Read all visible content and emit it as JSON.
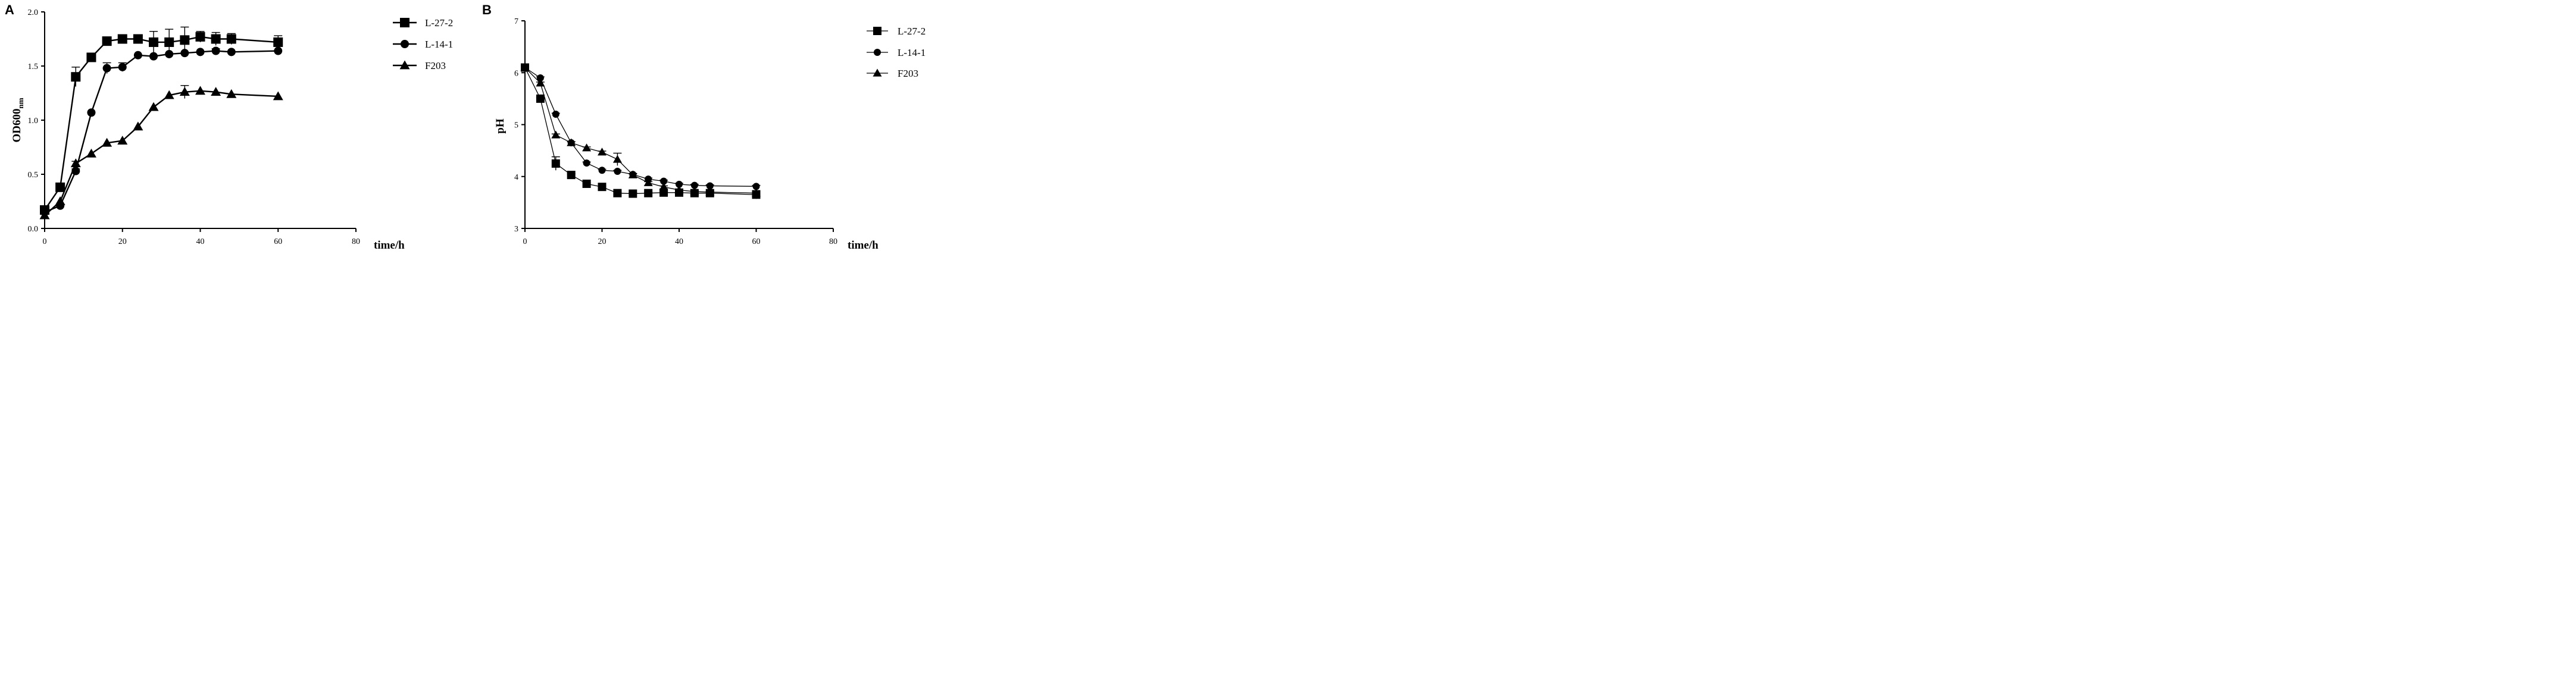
{
  "chart_data": [
    {
      "type": "line",
      "panel_label": "A",
      "xlabel": "time/h",
      "ylabel": {
        "main": "OD600",
        "sub": "nm"
      },
      "xlim": [
        0,
        80
      ],
      "ylim": [
        0.0,
        2.0
      ],
      "x_ticks": [
        "0",
        "20",
        "40",
        "60",
        "80"
      ],
      "y_ticks": [
        "0.0",
        "0.5",
        "1.0",
        "1.5",
        "2.0"
      ],
      "legend_position": "top-right",
      "grid": false,
      "series": [
        {
          "name": "L-27-2",
          "marker": "square",
          "x": [
            0,
            4,
            8,
            12,
            16,
            20,
            24,
            28,
            32,
            36,
            40,
            44,
            48,
            60
          ],
          "y": [
            0.17,
            0.38,
            1.4,
            1.58,
            1.73,
            1.75,
            1.75,
            1.72,
            1.72,
            1.74,
            1.77,
            1.75,
            1.75,
            1.72
          ],
          "err": [
            0.02,
            0.02,
            0.09,
            0.01,
            0.03,
            0.03,
            0.03,
            0.1,
            0.12,
            0.12,
            0.05,
            0.06,
            0.05,
            0.06
          ]
        },
        {
          "name": "L-14-1",
          "marker": "circle",
          "x": [
            0,
            4,
            8,
            12,
            16,
            20,
            24,
            28,
            32,
            36,
            40,
            44,
            48,
            60
          ],
          "y": [
            0.15,
            0.21,
            0.53,
            1.07,
            1.48,
            1.49,
            1.6,
            1.59,
            1.61,
            1.62,
            1.63,
            1.64,
            1.63,
            1.64
          ],
          "err": [
            0.01,
            0.01,
            0.02,
            0.01,
            0.05,
            0.04,
            0.01,
            0.01,
            0.01,
            0.01,
            0.01,
            0.02,
            0.01,
            0.01
          ]
        },
        {
          "name": "F203",
          "marker": "triangle",
          "x": [
            0,
            4,
            8,
            12,
            16,
            20,
            24,
            28,
            32,
            36,
            40,
            44,
            48,
            60
          ],
          "y": [
            0.12,
            0.25,
            0.6,
            0.69,
            0.79,
            0.81,
            0.94,
            1.12,
            1.23,
            1.26,
            1.27,
            1.26,
            1.24,
            1.22
          ],
          "err": [
            0.01,
            0.01,
            0.02,
            0.01,
            0.01,
            0.01,
            0.01,
            0.01,
            0.01,
            0.06,
            0.01,
            0.01,
            0.01,
            0.01
          ]
        }
      ]
    },
    {
      "type": "line",
      "panel_label": "B",
      "xlabel": "time/h",
      "ylabel": {
        "main": "pH",
        "sub": ""
      },
      "xlim": [
        0,
        80
      ],
      "ylim": [
        3,
        7
      ],
      "x_ticks": [
        "0",
        "20",
        "40",
        "60",
        "80"
      ],
      "y_ticks": [
        "3",
        "4",
        "5",
        "6",
        "7"
      ],
      "legend_position": "top-right",
      "grid": false,
      "series": [
        {
          "name": "L-27-2",
          "marker": "square",
          "x": [
            0,
            4,
            8,
            12,
            16,
            20,
            24,
            28,
            32,
            36,
            40,
            44,
            48,
            60
          ],
          "y": [
            6.1,
            5.5,
            4.25,
            4.03,
            3.86,
            3.8,
            3.68,
            3.67,
            3.68,
            3.69,
            3.69,
            3.68,
            3.68,
            3.65
          ],
          "err": [
            0.02,
            0.02,
            0.13,
            0.02,
            0.02,
            0.02,
            0.02,
            0.02,
            0.02,
            0.02,
            0.02,
            0.02,
            0.02,
            0.08
          ]
        },
        {
          "name": "L-14-1",
          "marker": "circle",
          "x": [
            0,
            4,
            8,
            12,
            16,
            20,
            24,
            28,
            32,
            36,
            40,
            44,
            48,
            60
          ],
          "y": [
            6.1,
            5.9,
            5.2,
            4.65,
            4.26,
            4.12,
            4.1,
            4.04,
            3.95,
            3.91,
            3.85,
            3.83,
            3.82,
            3.81
          ],
          "err": [
            0.02,
            0.02,
            0.02,
            0.02,
            0.02,
            0.02,
            0.02,
            0.02,
            0.02,
            0.02,
            0.02,
            0.02,
            0.02,
            0.02
          ]
        },
        {
          "name": "F203",
          "marker": "triangle",
          "x": [
            0,
            4,
            8,
            12,
            16,
            20,
            24,
            28,
            32,
            36,
            40,
            44,
            48,
            60
          ],
          "y": [
            6.1,
            5.8,
            4.8,
            4.65,
            4.55,
            4.47,
            4.33,
            4.03,
            3.88,
            3.8,
            3.74,
            3.71,
            3.7,
            3.68
          ],
          "err": [
            0.02,
            0.02,
            0.02,
            0.02,
            0.02,
            0.02,
            0.12,
            0.02,
            0.02,
            0.02,
            0.02,
            0.02,
            0.02,
            0.02
          ]
        }
      ]
    }
  ]
}
